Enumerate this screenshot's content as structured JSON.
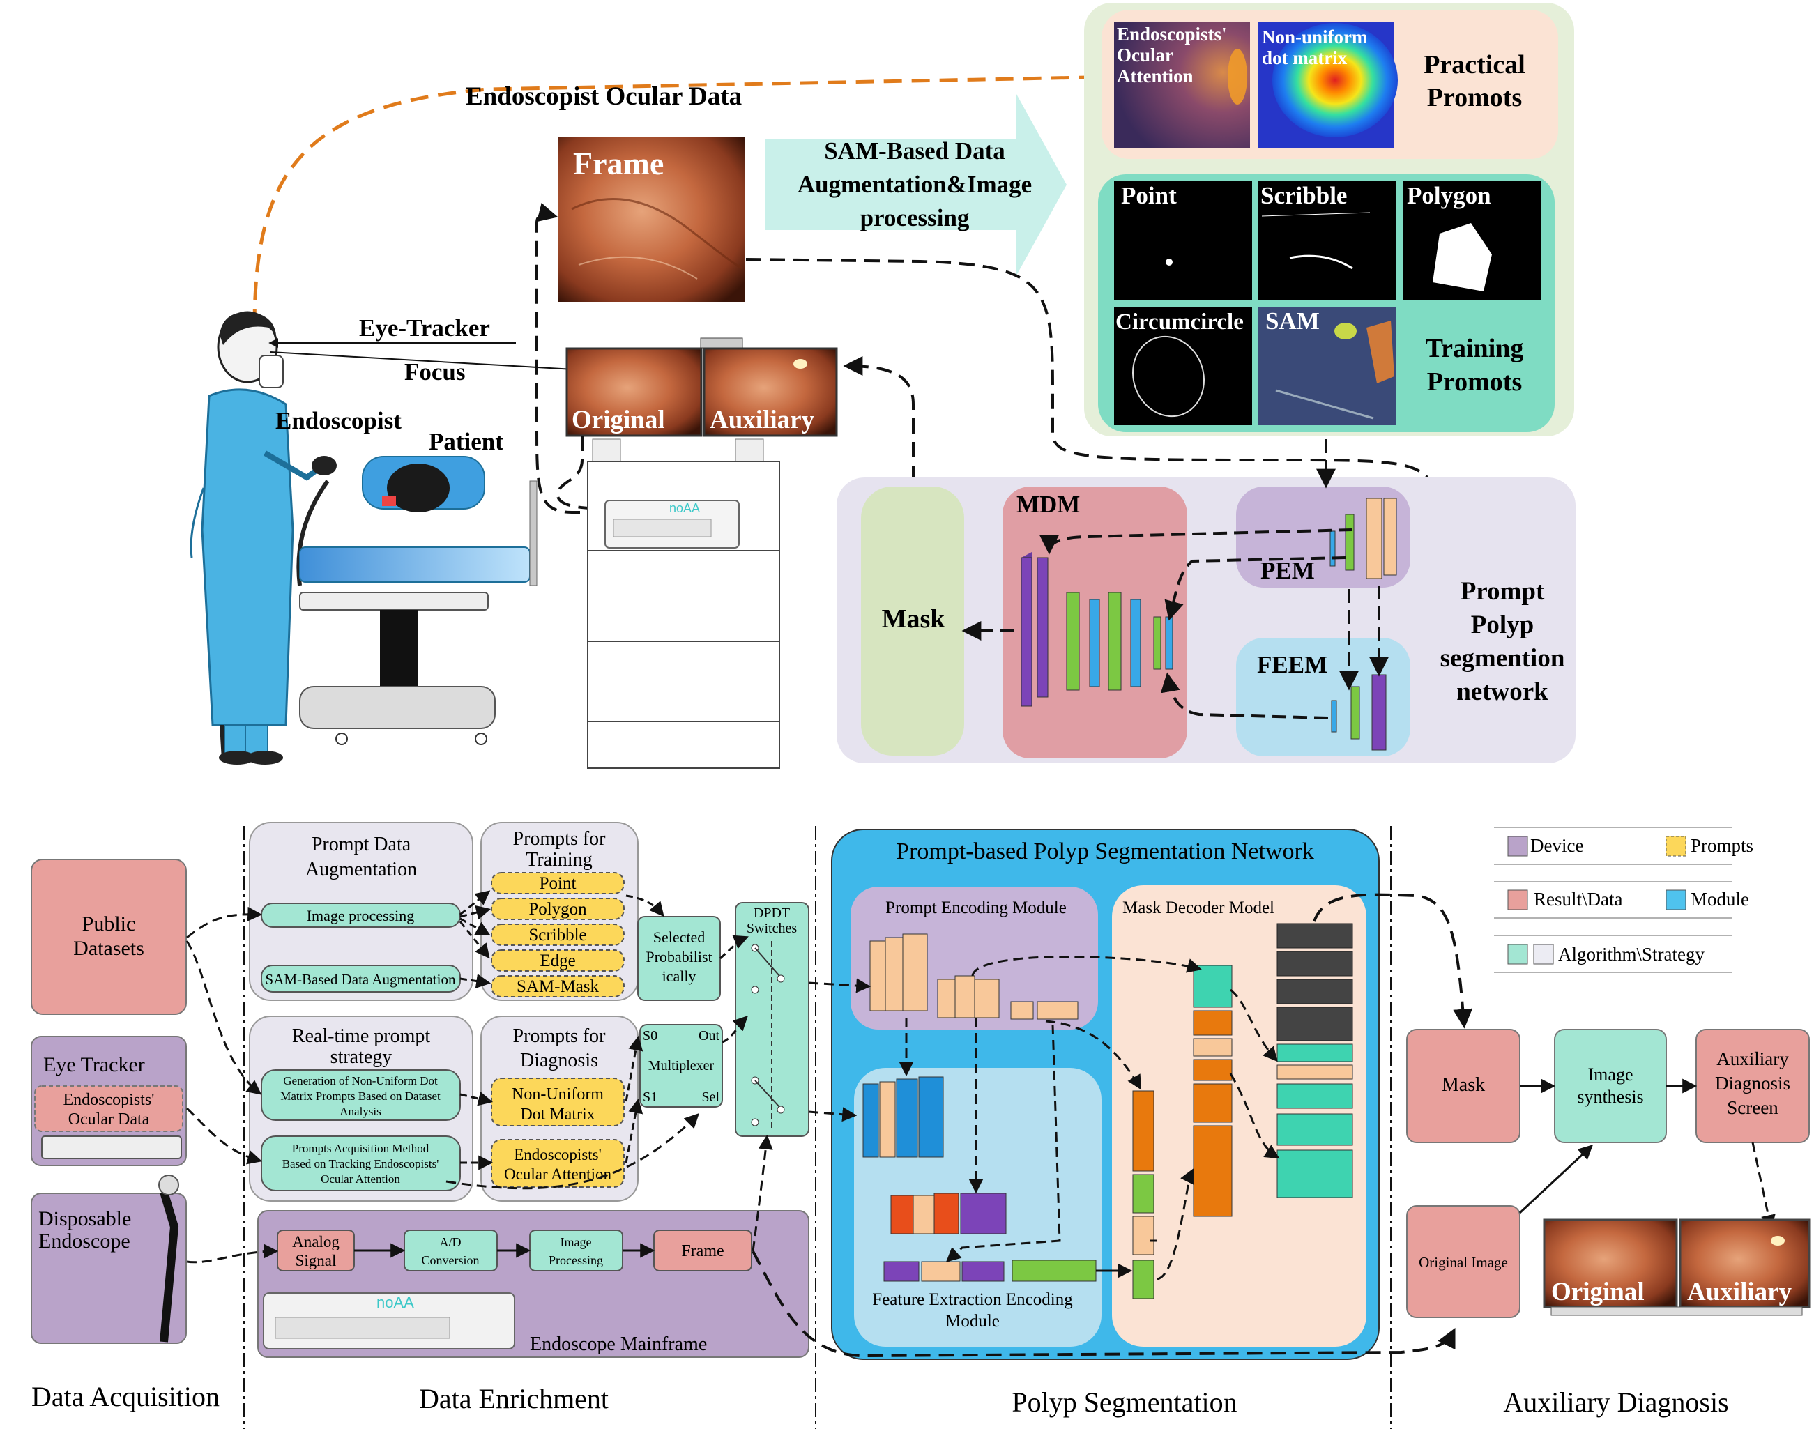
{
  "top": {
    "ocular_data": "Endoscopist Ocular Data",
    "frame": "Frame",
    "sam_arrow": [
      "SAM-Based Data",
      "Augmentation&Image",
      "processing"
    ],
    "practical": {
      "attention": [
        "Endoscopists'",
        "Ocular",
        "Attention"
      ],
      "dotmatrix": [
        "Non-uniform",
        "dot matrix"
      ],
      "title": [
        "Practical",
        "Promots"
      ]
    },
    "training": {
      "point": "Point",
      "scribble": "Scribble",
      "polygon": "Polygon",
      "circumcircle": "Circumcircle",
      "sam": "SAM",
      "title": [
        "Training",
        "Promots"
      ]
    },
    "eye_tracker": "Eye-Tracker",
    "focus": "Focus",
    "endoscopist": "Endoscopist",
    "patient": "Patient",
    "original": "Original",
    "auxiliary": "Auxiliary",
    "mask": "Mask",
    "mdm": "MDM",
    "pem": "PEM",
    "feem": "FEEM",
    "network": [
      "Prompt",
      "Polyp",
      "segmention",
      "network"
    ],
    "brand": "noAA"
  },
  "bottom": {
    "acq": {
      "public": [
        "Public",
        "Datasets"
      ],
      "eye_tracker": "Eye Tracker",
      "ocular": [
        "Endoscopists'",
        "Ocular Data"
      ],
      "disposable": [
        "Disposable",
        "Endoscope"
      ]
    },
    "enrich": {
      "prompt_aug": [
        "Prompt Data",
        "Augmentation"
      ],
      "image_processing": "Image processing",
      "sam_aug": "SAM-Based Data Augmentation",
      "training_title": [
        "Prompts for",
        "Training"
      ],
      "training_items": [
        "Point",
        "Polygon",
        "Scribble",
        "Edge",
        "SAM-Mask"
      ],
      "realtime": [
        "Real-time prompt",
        "strategy"
      ],
      "gen_nonuniform": [
        "Generation of Non-Uniform Dot",
        "Matrix Prompts Based on Dataset",
        "Analysis"
      ],
      "prompt_acq": [
        "Prompts Acquisition Method",
        "Based on Tracking Endoscopists'",
        "Ocular Attention"
      ],
      "diag_title": [
        "Prompts for",
        "Diagnosis"
      ],
      "nonuniform": [
        "Non-Uniform",
        "Dot Matrix"
      ],
      "ocular_att": [
        "Endoscopists'",
        "Ocular Attention"
      ],
      "selected": [
        "Selected",
        "Probabilist",
        "ically"
      ],
      "mux": {
        "s0": "S0",
        "out": "Out",
        "label": "Multiplexer",
        "s1": "S1",
        "sel": "Sel"
      },
      "dpdt": [
        "DPDT",
        "Switches"
      ],
      "analog": [
        "Analog",
        "Signal"
      ],
      "ad": [
        "A/D",
        "Conversion"
      ],
      "img_proc": [
        "Image",
        "Processing"
      ],
      "frame": "Frame",
      "mainframe": "Endoscope Mainframe"
    },
    "seg": {
      "title": "Prompt-based Polyp Segmentation Network",
      "pem": "Prompt Encoding Module",
      "mdm": "Mask Decoder Model",
      "feem": [
        "Feature Extraction Encoding",
        "Module"
      ]
    },
    "diag": {
      "legend": {
        "device": "Device",
        "prompts": "Prompts",
        "result": "Result\\Data",
        "module": "Module",
        "algorithm": "Algorithm\\Strategy"
      },
      "mask": "Mask",
      "synthesis": [
        "Image",
        "synthesis"
      ],
      "screen": [
        "Auxiliary",
        "Diagnosis",
        "Screen"
      ],
      "original_image": "Original Image",
      "original": "Original",
      "auxiliary": "Auxiliary"
    },
    "sections": [
      "Data Acquisition",
      "Data Enrichment",
      "Polyp Segmentation",
      "Auxiliary Diagnosis"
    ]
  },
  "colors": {
    "device": "#b9a3c9",
    "prompt": "#fcd75a",
    "result": "#e8a09c",
    "module": "#4fc3ee",
    "algorithm": "#a3e6d3",
    "orange_arrow": "#e07b1b"
  }
}
